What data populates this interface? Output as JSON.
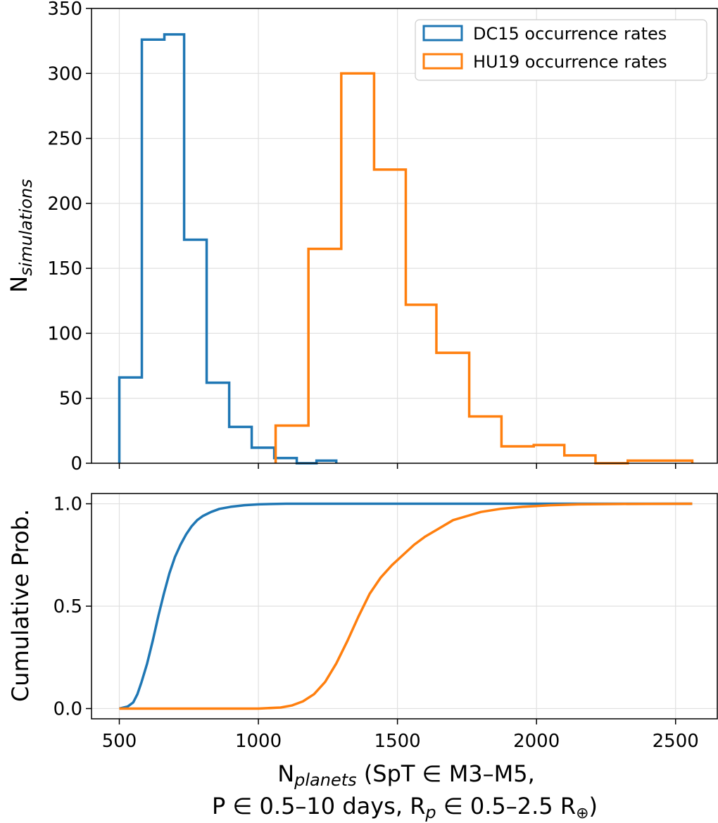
{
  "chart_data": [
    {
      "type": "step-histogram",
      "panel": "top",
      "ylabel_main": "N",
      "ylabel_sub": "simulations",
      "xlim": [
        400,
        2650
      ],
      "ylim": [
        0,
        350
      ],
      "yticks": [
        0,
        50,
        100,
        150,
        200,
        250,
        300,
        350
      ],
      "xticks": [
        500,
        1000,
        1500,
        2000,
        2500
      ],
      "grid": true,
      "legend": "top-right",
      "series": [
        {
          "name": "DC15 occurrence rates",
          "color": "#1f77b4",
          "bin_edges": [
            500,
            581,
            662,
            733,
            814,
            895,
            976,
            1057,
            1138,
            1209,
            1280
          ],
          "counts": [
            66,
            326,
            330,
            172,
            62,
            28,
            12,
            4,
            0,
            2
          ]
        },
        {
          "name": "HU19 occurrence rates",
          "color": "#ff7f0e",
          "bin_edges": [
            1062,
            1180,
            1298,
            1416,
            1530,
            1640,
            1758,
            1874,
            1990,
            2100,
            2212,
            2328,
            2560
          ],
          "counts": [
            29,
            165,
            300,
            226,
            122,
            85,
            36,
            13,
            14,
            6,
            0,
            2
          ]
        }
      ]
    },
    {
      "type": "line",
      "panel": "bottom",
      "ylabel": "Cumulative Prob.",
      "xlabel_main": "N",
      "xlabel_sub": "planets",
      "xlabel_rest": " (SpT ∈ M3–M5,",
      "xlabel_line2_a": "P ∈ 0.5–10 days, R",
      "xlabel_line2_sub": "p",
      "xlabel_line2_b": " ∈ 0.5–2.5 R",
      "xlabel_line2_sub2": "⊕",
      "xlabel_line2_c": ")",
      "xlim": [
        400,
        2650
      ],
      "ylim": [
        -0.05,
        1.05
      ],
      "yticks": [
        0.0,
        0.5,
        1.0
      ],
      "ytick_labels": [
        "0.0",
        "0.5",
        "1.0"
      ],
      "xticks": [
        500,
        1000,
        1500,
        2000,
        2500
      ],
      "grid": true,
      "series": [
        {
          "name": "DC15 occurrence rates",
          "color": "#1f77b4",
          "x": [
            500,
            530,
            550,
            565,
            580,
            600,
            620,
            640,
            660,
            680,
            700,
            720,
            740,
            760,
            780,
            800,
            830,
            860,
            900,
            950,
            1000,
            1050,
            1100,
            1200,
            1280,
            2560
          ],
          "y": [
            0.0,
            0.01,
            0.03,
            0.07,
            0.13,
            0.22,
            0.33,
            0.45,
            0.56,
            0.66,
            0.74,
            0.8,
            0.85,
            0.89,
            0.92,
            0.94,
            0.96,
            0.975,
            0.985,
            0.993,
            0.997,
            0.999,
            1.0,
            1.0,
            1.0,
            1.0
          ]
        },
        {
          "name": "HU19 occurrence rates",
          "color": "#ff7f0e",
          "x": [
            500,
            1000,
            1080,
            1120,
            1160,
            1200,
            1240,
            1280,
            1320,
            1360,
            1400,
            1440,
            1480,
            1520,
            1560,
            1600,
            1650,
            1700,
            1750,
            1800,
            1870,
            1950,
            2050,
            2150,
            2300,
            2560
          ],
          "y": [
            0.0,
            0.0,
            0.005,
            0.015,
            0.035,
            0.07,
            0.13,
            0.22,
            0.33,
            0.45,
            0.56,
            0.64,
            0.7,
            0.75,
            0.8,
            0.84,
            0.88,
            0.92,
            0.94,
            0.96,
            0.975,
            0.985,
            0.993,
            0.997,
            0.999,
            1.0
          ]
        }
      ]
    }
  ]
}
